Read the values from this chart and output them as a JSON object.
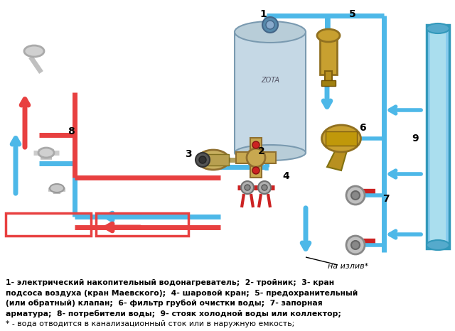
{
  "background_color": "#ffffff",
  "cold_color": "#4db8e8",
  "hot_color": "#e84040",
  "legend_lines": [
    "1- электрический накопительный водонагреватель;  2- тройник;  3- кран",
    "подсоса воздуха (кран Маевского);  4- шаровой кран;  5- предохранительный",
    "(или обратный) клапан;  6- фильтр грубой очистки воды;  7- запорная",
    "арматура;  8- потребители воды;  9- стояк холодной воды или коллектор;",
    "* - вода отводится в канализационный сток или в наружную емкость;"
  ]
}
